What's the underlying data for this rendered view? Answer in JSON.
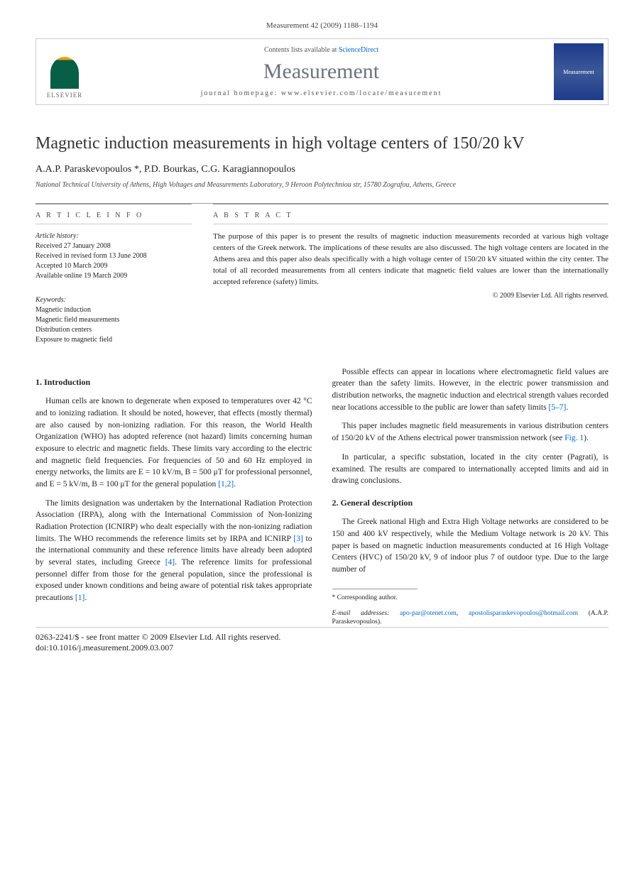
{
  "citation": "Measurement 42 (2009) 1188–1194",
  "header": {
    "contents_prefix": "Contents lists available at ",
    "contents_link": "ScienceDirect",
    "journal": "Measurement",
    "homepage_label": "journal homepage: www.elsevier.com/locate/measurement",
    "publisher": "ELSEVIER",
    "cover_label": "Measurement"
  },
  "title": "Magnetic induction measurements in high voltage centers of 150/20 kV",
  "authors": "A.A.P. Paraskevopoulos *, P.D. Bourkas, C.G. Karagiannopoulos",
  "affiliation": "National Technical University of Athens, High Voltages and Measurements Laboratory, 9 Heroon Polytechniou str, 15780 Zografou, Athens, Greece",
  "info": {
    "heading": "A R T I C L E   I N F O",
    "history_label": "Article history:",
    "received": "Received 27 January 2008",
    "revised": "Received in revised form 13 June 2008",
    "accepted": "Accepted 10 March 2009",
    "online": "Available online 19 March 2009",
    "keywords_label": "Keywords:",
    "kw1": "Magnetic induction",
    "kw2": "Magnetic field measurements",
    "kw3": "Distribution centers",
    "kw4": "Exposure to magnetic field"
  },
  "abstract": {
    "heading": "A B S T R A C T",
    "text": "The purpose of this paper is to present the results of magnetic induction measurements recorded at various high voltage centers of the Greek network. The implications of these results are also discussed. The high voltage centers are located in the Athens area and this paper also deals specifically with a high voltage center of 150/20 kV situated within the city center. The total of all recorded measurements from all centers indicate that magnetic field values are lower than the internationally accepted reference (safety) limits.",
    "copyright": "© 2009 Elsevier Ltd. All rights reserved."
  },
  "sections": {
    "intro_head": "1. Introduction",
    "p1": "Human cells are known to degenerate when exposed to temperatures over 42 °C and to ionizing radiation. It should be noted, however, that effects (mostly thermal) are also caused by non-ionizing radiation. For this reason, the World Health Organization (WHO) has adopted reference (not hazard) limits concerning human exposure to electric and magnetic fields. These limits vary according to the electric and magnetic field frequencies. For frequencies of 50 and 60 Hz employed in energy networks, the limits are E = 10 kV/m, B = 500 μT for professional personnel, and E = 5 kV/m, B = 100 μT for the general population ",
    "p1_refs": "[1,2]",
    "p1_end": ".",
    "p2a": "The limits designation was undertaken by the International Radiation Protection Association (IRPA), along with the International Commission of Non-Ionizing Radiation Protection (ICNIRP) who dealt especially with the non-ionizing radiation limits. The WHO recommends the reference limits set by IRPA and ICNIRP ",
    "p2_ref1": "[3]",
    "p2b": " to the international community and these reference limits have already been adopted by several states, including Greece ",
    "p2_ref2": "[4]",
    "p2c": ". The reference limits for professional personnel differ from those for the general population, since the professional is exposed under known conditions and being aware of potential risk takes appropriate precautions ",
    "p2_ref3": "[1]",
    "p2d": ".",
    "p3a": "Possible effects can appear in locations where electromagnetic field values are greater than the safety limits. However, in the electric power transmission and distribution networks, the magnetic induction and electrical strength values recorded near locations accessible to the public are lower than safety limits ",
    "p3_ref": "[5–7]",
    "p3b": ".",
    "p4a": "This paper includes magnetic field measurements in various distribution centers of 150/20 kV of the Athens electrical power transmission network (see ",
    "p4_ref": "Fig. 1",
    "p4b": ").",
    "p5": "In particular, a specific substation, located in the city center (Pagrati), is examined. The results are compared to internationally accepted limits and aid in drawing conclusions.",
    "general_head": "2. General description",
    "g1": "The Greek national High and Extra High Voltage networks are considered to be 150 and 400 kV respectively, while the Medium Voltage network is 20 kV. This paper is based on magnetic induction measurements conducted at 16 High Voltage Centers (HVC) of 150/20 kV, 9 of indoor plus 7 of outdoor type. Due to the large number of"
  },
  "footnote": {
    "corr": "* Corresponding author.",
    "emails_label": "E-mail addresses: ",
    "email1": "apo-par@otenet.com",
    "sep": ", ",
    "email2": "apostolisparaskevopoulos@hotmail.com",
    "name": " (A.A.P. Paraskevopoulos)."
  },
  "bottom": {
    "left1": "0263-2241/$ - see front matter © 2009 Elsevier Ltd. All rights reserved.",
    "left2": "doi:10.1016/j.measurement.2009.03.007"
  }
}
